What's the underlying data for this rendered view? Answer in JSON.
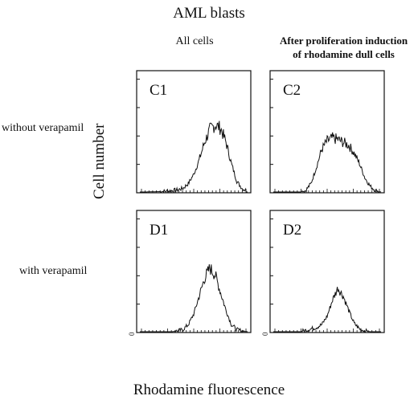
{
  "figure": {
    "title": "AML blasts",
    "column_headers": [
      "All cells",
      "After proliferation induction of rhodamine dull cells"
    ],
    "column_header_2_lines": [
      "After proliferation induction",
      "of rhodamine dull cells"
    ],
    "row_labels": [
      "without verapamil",
      "with verapamil"
    ],
    "ylabel": "Cell number",
    "xlabel": "Rhodamine fluorescence",
    "y_origin_tick": "0"
  },
  "chart_data": [
    {
      "type": "area",
      "panel": "C1",
      "x": [
        0,
        5,
        10,
        15,
        20,
        25,
        30,
        35,
        40,
        45,
        50,
        55,
        60,
        65,
        70,
        75,
        80,
        85,
        90,
        95,
        100
      ],
      "values": [
        0,
        0,
        0.2,
        0.4,
        0.6,
        1,
        2,
        3,
        5,
        12,
        25,
        45,
        70,
        88,
        95,
        90,
        70,
        40,
        15,
        5,
        1
      ],
      "ylim": [
        0,
        100
      ],
      "xlim": [
        0,
        100
      ]
    },
    {
      "type": "area",
      "panel": "C2",
      "x": [
        0,
        5,
        10,
        15,
        20,
        25,
        30,
        35,
        40,
        45,
        50,
        55,
        60,
        65,
        70,
        75,
        80,
        85,
        90,
        95,
        100
      ],
      "values": [
        0,
        0,
        0,
        0,
        0,
        0,
        2,
        12,
        35,
        60,
        72,
        76,
        74,
        70,
        66,
        55,
        40,
        20,
        8,
        2,
        0
      ],
      "ylim": [
        0,
        100
      ],
      "xlim": [
        0,
        100
      ]
    },
    {
      "type": "area",
      "panel": "D1",
      "x": [
        0,
        5,
        10,
        15,
        20,
        25,
        30,
        35,
        40,
        45,
        50,
        55,
        60,
        65,
        70,
        75,
        80,
        85,
        90,
        95,
        100
      ],
      "values": [
        0,
        0,
        0,
        0,
        0,
        0,
        0,
        1,
        3,
        10,
        25,
        50,
        75,
        90,
        80,
        55,
        30,
        10,
        3,
        1,
        0
      ],
      "ylim": [
        0,
        100
      ],
      "xlim": [
        0,
        100
      ]
    },
    {
      "type": "area",
      "panel": "D2",
      "x": [
        0,
        5,
        10,
        15,
        20,
        25,
        30,
        35,
        40,
        45,
        50,
        55,
        60,
        65,
        70,
        75,
        80,
        85,
        90,
        95,
        100
      ],
      "values": [
        0,
        0,
        0,
        0,
        0,
        0,
        2,
        4,
        6,
        10,
        22,
        45,
        62,
        50,
        30,
        12,
        4,
        1,
        0,
        0,
        0
      ],
      "ylim": [
        0,
        100
      ],
      "xlim": [
        0,
        100
      ]
    }
  ]
}
